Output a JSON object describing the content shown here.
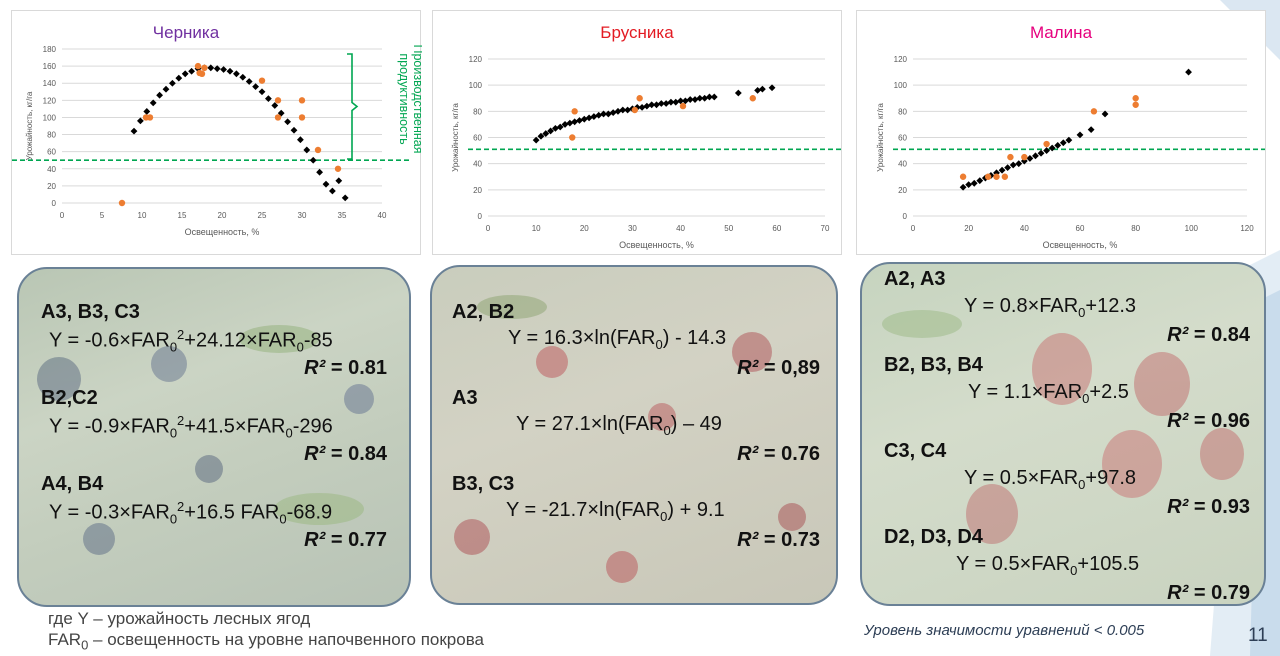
{
  "charts": [
    {
      "title": "Черника",
      "title_color": "#7030a0",
      "xlabel": "Освещенность, %",
      "ylabel": "Урожайность, кг/га",
      "xticks": [
        "0",
        "5",
        "10",
        "15",
        "20",
        "25",
        "30",
        "35",
        "40"
      ],
      "yticks": [
        "0",
        "20",
        "40",
        "60",
        "80",
        "100",
        "120",
        "140",
        "160",
        "180"
      ],
      "annotation": "Производственная продуктивность",
      "annotation_color": "#00a651"
    },
    {
      "title": "Брусника",
      "title_color": "#e31b23",
      "xlabel": "Освещенность, %",
      "ylabel": "Урожайность, кг/га",
      "xticks": [
        "0",
        "10",
        "20",
        "30",
        "40",
        "50",
        "60",
        "70"
      ],
      "yticks": [
        "0",
        "20",
        "40",
        "60",
        "80",
        "100",
        "120"
      ]
    },
    {
      "title": "Малина",
      "title_color": "#e6007e",
      "xlabel": "Освещенность, %",
      "ylabel": "Урожайность, кг/га",
      "xticks": [
        "0",
        "20",
        "40",
        "60",
        "80",
        "100",
        "120"
      ],
      "yticks": [
        "0",
        "20",
        "40",
        "60",
        "80",
        "100",
        "120"
      ]
    }
  ],
  "chart_data": [
    {
      "type": "scatter",
      "title": "Черника",
      "xlabel": "Освещенность, %",
      "ylabel": "Урожайность, кг/га",
      "xlim": [
        0,
        40
      ],
      "ylim": [
        0,
        180
      ],
      "threshold_y": 50,
      "series": [
        {
          "name": "model",
          "color": "#000000",
          "marker": "diamond",
          "x": [
            9,
            9.8,
            10.6,
            11.4,
            12.2,
            13,
            13.8,
            14.6,
            15.4,
            16.2,
            17,
            17.8,
            18.6,
            19.4,
            20.2,
            21,
            21.8,
            22.6,
            23.4,
            24.2,
            25,
            25.8,
            26.6,
            27.4,
            28.2,
            29,
            29.8,
            30.6,
            31.4,
            32.2,
            33,
            33.8,
            34.6,
            35.4
          ],
          "y": [
            84,
            96,
            107,
            117,
            126,
            133,
            140,
            146,
            151,
            154,
            157,
            158,
            158,
            157,
            156,
            154,
            151,
            147,
            142,
            136,
            130,
            122,
            114,
            105,
            95,
            85,
            74,
            62,
            50,
            36,
            22,
            14,
            26,
            6
          ]
        },
        {
          "name": "observed",
          "color": "#ed7d31",
          "marker": "circle",
          "x": [
            7.5,
            10.5,
            11,
            17,
            17.2,
            17.5,
            17.8,
            25,
            27,
            27,
            30,
            30,
            32,
            34.5
          ],
          "y": [
            0,
            100,
            100,
            160,
            152,
            151,
            158,
            143,
            120,
            100,
            120,
            100,
            62,
            40
          ]
        }
      ]
    },
    {
      "type": "scatter",
      "title": "Брусника",
      "xlabel": "Освещенность, %",
      "ylabel": "Урожайность, кг/га",
      "xlim": [
        0,
        70
      ],
      "ylim": [
        0,
        120
      ],
      "threshold_y": 51,
      "series": [
        {
          "name": "model",
          "color": "#000000",
          "marker": "diamond",
          "x": [
            10,
            11,
            12,
            13,
            14,
            15,
            16,
            17,
            18,
            19,
            20,
            21,
            22,
            23,
            24,
            25,
            26,
            27,
            28,
            29,
            30,
            31,
            32,
            33,
            34,
            35,
            36,
            37,
            38,
            39,
            40,
            41,
            42,
            43,
            44,
            45,
            46,
            47,
            52,
            56,
            57,
            59
          ],
          "y": [
            58,
            61,
            63,
            65,
            67,
            68,
            70,
            71,
            72,
            73,
            74,
            75,
            76,
            77,
            78,
            78,
            79,
            80,
            81,
            81,
            82,
            83,
            83,
            84,
            85,
            85,
            86,
            86,
            87,
            87,
            88,
            88,
            89,
            89,
            90,
            90,
            91,
            91,
            94,
            96,
            97,
            98
          ]
        },
        {
          "name": "observed",
          "color": "#ed7d31",
          "marker": "circle",
          "x": [
            17.5,
            18,
            30.5,
            31.5,
            40.5,
            55
          ],
          "y": [
            60,
            80,
            81,
            90,
            84,
            90
          ]
        }
      ]
    },
    {
      "type": "scatter",
      "title": "Малина",
      "xlabel": "Освещенность, %",
      "ylabel": "Урожайность, кг/га",
      "xlim": [
        0,
        120
      ],
      "ylim": [
        0,
        120
      ],
      "threshold_y": 51,
      "series": [
        {
          "name": "model",
          "color": "#000000",
          "marker": "diamond",
          "x": [
            18,
            20,
            22,
            24,
            26,
            28,
            30,
            32,
            34,
            36,
            38,
            40,
            42,
            44,
            46,
            48,
            50,
            52,
            54,
            56,
            60,
            64,
            69,
            99
          ],
          "y": [
            22,
            24,
            25,
            27,
            29,
            31,
            33,
            35,
            37,
            39,
            40,
            42,
            44,
            46,
            48,
            50,
            52,
            54,
            56,
            58,
            62,
            66,
            78,
            110
          ]
        },
        {
          "name": "observed",
          "color": "#ed7d31",
          "marker": "circle",
          "x": [
            18,
            27,
            30,
            33,
            35,
            40,
            48,
            65,
            80,
            80
          ],
          "y": [
            30,
            30,
            30,
            30,
            45,
            45,
            55,
            80,
            90,
            85
          ]
        }
      ]
    }
  ],
  "equations": {
    "blueberry": [
      {
        "group": "A3, B3, C3",
        "eq_a": "Y = -0.6×FAR",
        "sub1": "0",
        "sup1": "2",
        "eq_b": "+24.12×FAR",
        "sub2": "0",
        "eq_c": "-85",
        "r2_label": "R²",
        "r2_value": " = 0.81"
      },
      {
        "group": "B2,C2",
        "eq_a": "Y = -0.9×FAR",
        "sub1": "0",
        "sup1": "2",
        "eq_b": "+41.5×FAR",
        "sub2": "0",
        "eq_c": "-296",
        "r2_label": "R²",
        "r2_value": " = 0.84"
      },
      {
        "group": "A4, B4",
        "eq_a": "Y = -0.3×FAR",
        "sub1": "0",
        "sup1": "2",
        "eq_b": "+16.5 FAR",
        "sub2": "0",
        "eq_c": "-68.9",
        "r2_label": "R²",
        "r2_value": " = 0.77"
      }
    ],
    "lingonberry": [
      {
        "group": "A2, B2",
        "eq_a": "Y = 16.3×ln(FAR",
        "sub": "0",
        "eq_b": ") - 14.3",
        "r2_label": "R²",
        "r2_value": " = 0,89"
      },
      {
        "group": "A3",
        "eq_a": "Y = 27.1×ln(FAR",
        "sub": "0",
        "eq_b": ") – 49",
        "r2_label": "R²",
        "r2_value": " = 0.76"
      },
      {
        "group": "B3, C3",
        "eq_a": "Y = -21.7×ln(FAR",
        "sub": "0",
        "eq_b": ") + 9.1",
        "r2_label": "R²",
        "r2_value": " = 0.73"
      }
    ],
    "raspberry": [
      {
        "group": "A2, A3",
        "eq_a": "Y = 0.8×FAR",
        "sub": "0",
        "eq_b": "+12.3",
        "r2_label": "R²",
        "r2_value": " = 0.84"
      },
      {
        "group": "B2, B3, B4",
        "eq_a": "Y = 1.1×FAR",
        "sub": "0",
        "eq_b": "+2.5",
        "r2_label": "R²",
        "r2_value": " = 0.96"
      },
      {
        "group": "C3, C4",
        "eq_a": "Y = 0.5×FAR",
        "sub": "0",
        "eq_b": "+97.8",
        "r2_label": "R²",
        "r2_value": " = 0.93"
      },
      {
        "group": "D2, D3, D4",
        "eq_a": "Y = 0.5×FAR",
        "sub": "0",
        "eq_b": "+105.5",
        "r2_label": "R²",
        "r2_value": " = 0.79"
      }
    ]
  },
  "footnote": {
    "line1": "где Y – урожайность лесных ягод",
    "line2_a": "FAR",
    "line2_sub": "0",
    "line2_b": " – освещенность на уровне напочвенного покрова"
  },
  "significance": "Уровень значимости  уравнений  < 0.005",
  "page_number": "11",
  "colors": {
    "model_points": "#000000",
    "observed_points": "#ed7d31",
    "threshold_line": "#00a651",
    "box_border": "#6a8196",
    "accent": "#2d3e55"
  }
}
